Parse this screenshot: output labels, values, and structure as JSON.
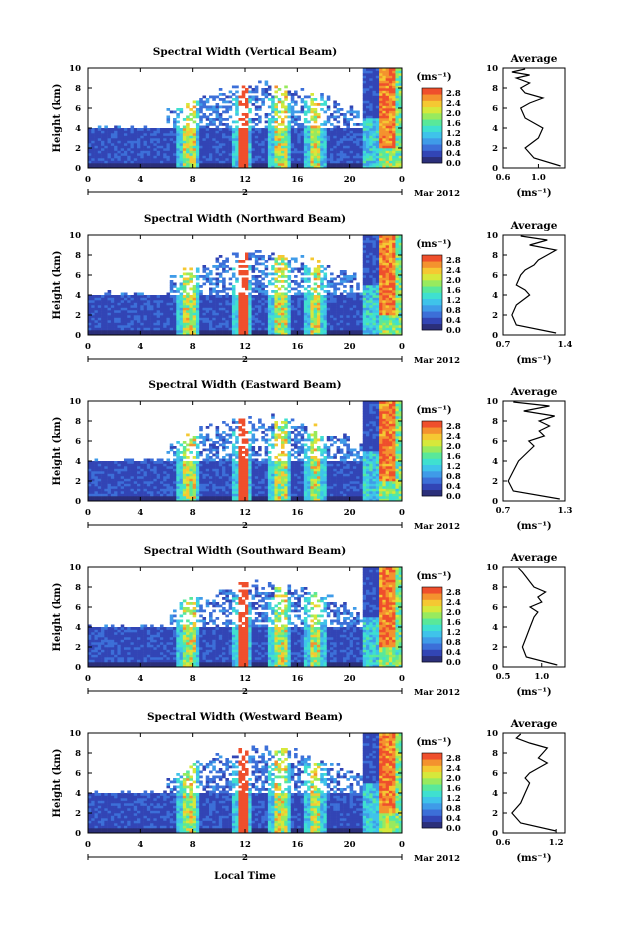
{
  "chart_data": [
    {
      "type": "heatmap",
      "title": "Spectral Width (Vertical Beam)",
      "ylabel": "Height (km)",
      "xlabel": "",
      "x_ticks": [
        "0",
        "4",
        "8",
        "12",
        "16",
        "20",
        "0"
      ],
      "y_ticks": [
        "0",
        "2",
        "4",
        "6",
        "8",
        "10"
      ],
      "xlim": [
        0,
        24
      ],
      "ylim": [
        0,
        10
      ],
      "date_label": "2",
      "month_label": "Mar 2012",
      "colorbar": {
        "unit": "(ms⁻¹)",
        "ticks": [
          "0.0",
          "0.4",
          "0.8",
          "1.2",
          "1.6",
          "2.0",
          "2.4",
          "2.8"
        ],
        "range": [
          0.0,
          3.0
        ]
      },
      "profile": {
        "title": "Average",
        "xlabel": "(ms⁻¹)",
        "x_ticks": [
          "0.6",
          "1.0"
        ],
        "xlim": [
          0.6,
          1.3
        ],
        "heights": [
          0.2,
          1,
          2,
          3,
          4,
          5,
          6,
          6.5,
          7,
          7.5,
          8,
          8.5,
          9,
          9.3,
          9.6,
          9.9
        ],
        "values": [
          1.25,
          0.95,
          0.85,
          1.0,
          1.05,
          0.85,
          0.8,
          0.9,
          1.05,
          0.85,
          0.8,
          0.9,
          0.75,
          0.9,
          0.7,
          0.85
        ]
      }
    },
    {
      "type": "heatmap",
      "title": "Spectral Width (Northward Beam)",
      "ylabel": "Height (km)",
      "xlabel": "",
      "x_ticks": [
        "0",
        "4",
        "8",
        "12",
        "16",
        "20",
        "0"
      ],
      "y_ticks": [
        "0",
        "2",
        "4",
        "6",
        "8",
        "10"
      ],
      "xlim": [
        0,
        24
      ],
      "ylim": [
        0,
        10
      ],
      "date_label": "2",
      "month_label": "Mar 2012",
      "colorbar": {
        "unit": "(ms⁻¹)",
        "ticks": [
          "0.0",
          "0.4",
          "0.8",
          "1.2",
          "1.6",
          "2.0",
          "2.4",
          "2.8"
        ],
        "range": [
          0.0,
          3.0
        ]
      },
      "profile": {
        "title": "Average",
        "xlabel": "(ms⁻¹)",
        "x_ticks": [
          "0.7",
          "1.4"
        ],
        "xlim": [
          0.7,
          1.4
        ],
        "heights": [
          0.2,
          1,
          2,
          3,
          4,
          4.5,
          5,
          6,
          6.5,
          7,
          7.5,
          8,
          8.5,
          9,
          9.5,
          9.9
        ],
        "values": [
          1.3,
          0.85,
          0.8,
          0.85,
          1.0,
          0.95,
          0.85,
          0.9,
          0.95,
          1.05,
          1.1,
          1.2,
          1.3,
          1.0,
          1.2,
          0.9
        ]
      }
    },
    {
      "type": "heatmap",
      "title": "Spectral Width (Eastward Beam)",
      "ylabel": "Height (km)",
      "xlabel": "",
      "x_ticks": [
        "0",
        "4",
        "8",
        "12",
        "16",
        "20",
        "0"
      ],
      "y_ticks": [
        "0",
        "2",
        "4",
        "6",
        "8",
        "10"
      ],
      "xlim": [
        0,
        24
      ],
      "ylim": [
        0,
        10
      ],
      "date_label": "2",
      "month_label": "Mar 2012",
      "colorbar": {
        "unit": "(ms⁻¹)",
        "ticks": [
          "0.0",
          "0.4",
          "0.8",
          "1.2",
          "1.6",
          "2.0",
          "2.4",
          "2.8"
        ],
        "range": [
          0.0,
          3.0
        ]
      },
      "profile": {
        "title": "Average",
        "xlabel": "(ms⁻¹)",
        "x_ticks": [
          "0.7",
          "1.3"
        ],
        "xlim": [
          0.7,
          1.3
        ],
        "heights": [
          0.2,
          1,
          2,
          3,
          4,
          5,
          5.5,
          6,
          6.5,
          7,
          7.5,
          8,
          8.5,
          9,
          9.5,
          9.9
        ],
        "values": [
          1.25,
          0.8,
          0.75,
          0.8,
          0.85,
          0.95,
          1.0,
          0.95,
          1.1,
          1.05,
          1.15,
          1.05,
          1.2,
          0.9,
          1.15,
          0.8
        ]
      }
    },
    {
      "type": "heatmap",
      "title": "Spectral Width (Southward Beam)",
      "ylabel": "Height (km)",
      "xlabel": "",
      "x_ticks": [
        "0",
        "4",
        "8",
        "12",
        "16",
        "20",
        "0"
      ],
      "y_ticks": [
        "0",
        "2",
        "4",
        "6",
        "8",
        "10"
      ],
      "xlim": [
        0,
        24
      ],
      "ylim": [
        0,
        10
      ],
      "date_label": "2",
      "month_label": "Mar 2012",
      "colorbar": {
        "unit": "(ms⁻¹)",
        "ticks": [
          "0.0",
          "0.4",
          "0.8",
          "1.2",
          "1.6",
          "2.0",
          "2.4",
          "2.8"
        ],
        "range": [
          0.0,
          3.0
        ]
      },
      "profile": {
        "title": "Average",
        "xlabel": "(ms⁻¹)",
        "x_ticks": [
          "0.5",
          "1.0"
        ],
        "xlim": [
          0.5,
          1.3
        ],
        "heights": [
          0.2,
          1,
          2,
          3,
          4,
          5,
          5.5,
          6,
          6.5,
          7,
          7.5,
          8,
          8.5,
          9,
          9.5,
          9.9
        ],
        "values": [
          1.2,
          0.8,
          0.75,
          0.8,
          0.85,
          0.9,
          0.95,
          0.85,
          1.0,
          0.95,
          1.05,
          0.9,
          0.85,
          0.8,
          0.75,
          0.7
        ]
      }
    },
    {
      "type": "heatmap",
      "title": "Spectral Width (Westward Beam)",
      "ylabel": "Height (km)",
      "xlabel": "Local Time",
      "x_ticks": [
        "0",
        "4",
        "8",
        "12",
        "16",
        "20",
        "0"
      ],
      "y_ticks": [
        "0",
        "2",
        "4",
        "6",
        "8",
        "10"
      ],
      "xlim": [
        0,
        24
      ],
      "ylim": [
        0,
        10
      ],
      "date_label": "2",
      "month_label": "Mar 2012",
      "colorbar": {
        "unit": "(ms⁻¹)",
        "ticks": [
          "0.0",
          "0.4",
          "0.8",
          "1.2",
          "1.6",
          "2.0",
          "2.4",
          "2.8"
        ],
        "range": [
          0.0,
          3.0
        ]
      },
      "profile": {
        "title": "Average",
        "xlabel": "(ms⁻¹)",
        "x_ticks": [
          "0.6",
          "1.2"
        ],
        "xlim": [
          0.6,
          1.3
        ],
        "heights": [
          0.2,
          1,
          2,
          3,
          4,
          5,
          5.5,
          6,
          6.5,
          7,
          7.5,
          8,
          8.5,
          9,
          9.5,
          9.9
        ],
        "values": [
          1.2,
          0.8,
          0.7,
          0.8,
          0.85,
          0.9,
          0.85,
          0.9,
          1.0,
          1.1,
          1.0,
          1.05,
          1.1,
          0.9,
          0.75,
          0.8
        ]
      }
    }
  ]
}
